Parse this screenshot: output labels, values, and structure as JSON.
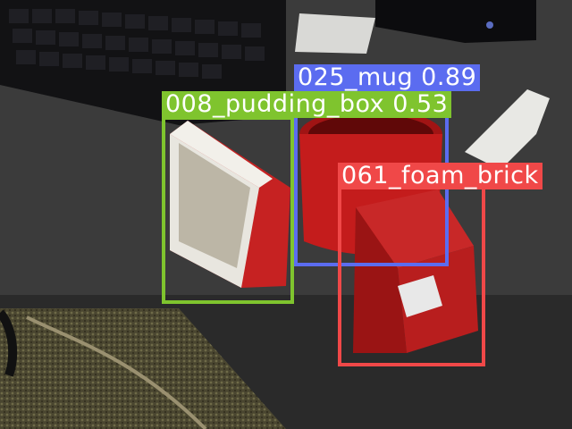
{
  "detections": [
    {
      "label": "025_mug 0.89",
      "color": "#5b6cf0"
    },
    {
      "label": "008_pudding_box 0.53",
      "color": "#7fc42e"
    },
    {
      "label": "061_foam_brick",
      "color": "#f04848"
    }
  ]
}
